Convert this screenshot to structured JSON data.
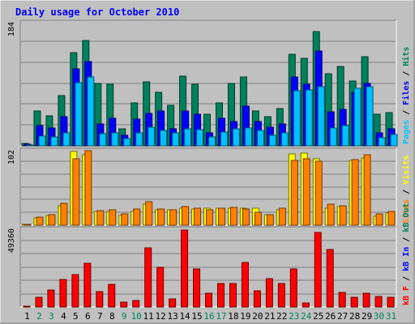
{
  "title": "Daily usage for October 2010",
  "colors": {
    "background": "#c0c0c0",
    "title": "#0000ff",
    "hits": "#00805c",
    "files": "#0000ff",
    "pages": "#00c0ff",
    "visits": "#ffff00",
    "sites": "#ff8000",
    "kb_in": "#0000ff",
    "kb_out": "#00805c",
    "kb_f": "#ff0000"
  },
  "chart_data": [
    {
      "type": "bar",
      "name": "hits-files-pages",
      "max_label": "184",
      "ylim": [
        0,
        184
      ],
      "grid": true,
      "legend": [
        "Hits",
        "Files",
        "Pages"
      ],
      "categories": [
        "1",
        "2",
        "3",
        "4",
        "5",
        "6",
        "7",
        "8",
        "9",
        "10",
        "11",
        "12",
        "13",
        "14",
        "15",
        "16",
        "17",
        "18",
        "19",
        "20",
        "21",
        "22",
        "23",
        "24",
        "25",
        "26",
        "27",
        "28",
        "29",
        "30",
        "31"
      ],
      "series": [
        {
          "name": "Hits",
          "values": [
            4,
            52,
            45,
            76,
            140,
            159,
            94,
            92,
            26,
            64,
            96,
            80,
            61,
            105,
            93,
            48,
            64,
            94,
            104,
            52,
            44,
            56,
            138,
            131,
            172,
            109,
            119,
            98,
            134,
            48,
            50
          ]
        },
        {
          "name": "Files",
          "values": [
            3,
            30,
            27,
            44,
            116,
            127,
            33,
            41,
            16,
            40,
            49,
            52,
            25,
            52,
            48,
            20,
            41,
            36,
            60,
            36,
            28,
            33,
            103,
            92,
            143,
            51,
            55,
            81,
            94,
            20,
            26
          ]
        },
        {
          "name": "Pages",
          "values": [
            1,
            15,
            13,
            20,
            95,
            104,
            18,
            20,
            11,
            19,
            28,
            23,
            20,
            26,
            24,
            14,
            21,
            25,
            27,
            23,
            16,
            20,
            83,
            84,
            89,
            27,
            30,
            86,
            89,
            12,
            17
          ]
        }
      ]
    },
    {
      "type": "bar",
      "name": "visits-sites",
      "max_label": "102",
      "ylim": [
        0,
        102
      ],
      "grid": true,
      "legend": [
        "Sites",
        "Visits"
      ],
      "categories": [
        "1",
        "2",
        "3",
        "4",
        "5",
        "6",
        "7",
        "8",
        "9",
        "10",
        "11",
        "12",
        "13",
        "14",
        "15",
        "16",
        "17",
        "18",
        "19",
        "20",
        "21",
        "22",
        "23",
        "24",
        "25",
        "26",
        "27",
        "28",
        "29",
        "30",
        "31"
      ],
      "series": [
        {
          "name": "Visits",
          "values": [
            1,
            10,
            13,
            27,
            102,
            98,
            19,
            19,
            13,
            19,
            29,
            21,
            21,
            24,
            22,
            23,
            24,
            24,
            24,
            23,
            15,
            21,
            99,
            100,
            92,
            24,
            26,
            90,
            93,
            12,
            17
          ]
        },
        {
          "name": "Sites",
          "values": [
            1,
            11,
            15,
            30,
            92,
            103,
            20,
            21,
            16,
            22,
            33,
            22,
            21,
            26,
            24,
            21,
            24,
            25,
            22,
            18,
            15,
            24,
            90,
            92,
            89,
            29,
            27,
            91,
            97,
            16,
            19
          ]
        }
      ]
    },
    {
      "type": "bar",
      "name": "kbytes",
      "max_label": "49360",
      "ylim": [
        0,
        49360
      ],
      "grid": true,
      "legend": [
        "kB F",
        "kB In",
        "kB Out"
      ],
      "categories": [
        "1",
        "2",
        "3",
        "4",
        "5",
        "6",
        "7",
        "8",
        "9",
        "10",
        "11",
        "12",
        "13",
        "14",
        "15",
        "16",
        "17",
        "18",
        "19",
        "20",
        "21",
        "22",
        "23",
        "24",
        "25",
        "26",
        "27",
        "28",
        "29",
        "30",
        "31"
      ],
      "series": [
        {
          "name": "kB F",
          "values": [
            500,
            6400,
            10800,
            17500,
            20800,
            28100,
            10000,
            14500,
            3000,
            4000,
            38000,
            25600,
            5000,
            49360,
            24600,
            9000,
            15000,
            15000,
            28400,
            10500,
            18300,
            15200,
            24300,
            2500,
            47600,
            37000,
            9500,
            6400,
            9000,
            6900,
            6000
          ]
        }
      ]
    }
  ],
  "side_labels": {
    "top": [
      {
        "text": "Pages",
        "color_key": "pages"
      },
      {
        "text": " / ",
        "color_key": "text"
      },
      {
        "text": "Files",
        "color_key": "files"
      },
      {
        "text": " / ",
        "color_key": "text"
      },
      {
        "text": "Hits",
        "color_key": "hits"
      }
    ],
    "middle": [
      {
        "text": "Sites",
        "color_key": "sites"
      },
      {
        "text": " / ",
        "color_key": "text"
      },
      {
        "text": "Visits",
        "color_key": "visits"
      }
    ],
    "bottom": [
      {
        "text": "kB F",
        "color_key": "kb_f"
      },
      {
        "text": " / ",
        "color_key": "text"
      },
      {
        "text": "kB In",
        "color_key": "kb_in"
      },
      {
        "text": " / ",
        "color_key": "text"
      },
      {
        "text": "kB Out",
        "color_key": "kb_out"
      }
    ]
  },
  "weekend_days": [
    "2",
    "3",
    "9",
    "10",
    "16",
    "17",
    "23",
    "24",
    "30",
    "31"
  ],
  "day_label_colors": {
    "weekday": "#000000",
    "weekend": "#00805c"
  }
}
